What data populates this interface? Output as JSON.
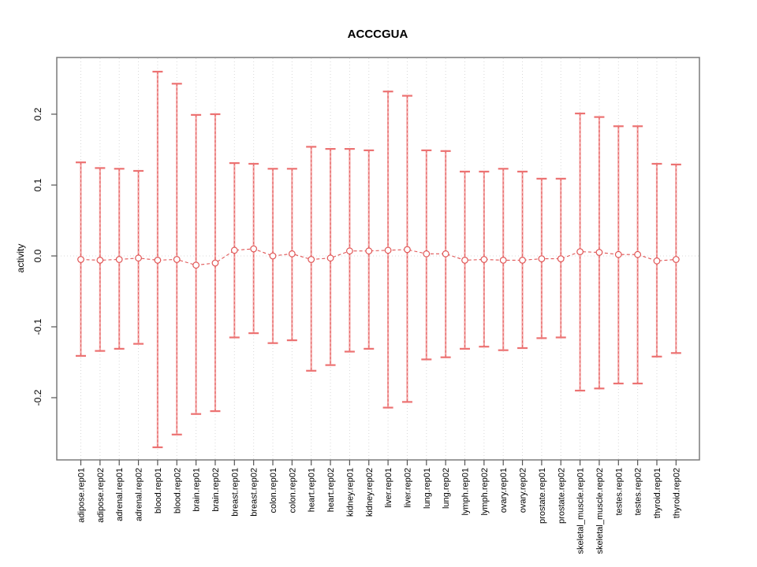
{
  "chart_data": {
    "type": "errorbar",
    "title": "ACCCGUA",
    "ylabel": "activity",
    "xlabel": "",
    "ylim": [
      -0.287,
      0.281
    ],
    "yticks": [
      -0.2,
      -0.1,
      0.0,
      0.1,
      0.2
    ],
    "ytick_labels": [
      "-0.2",
      "-0.1",
      "0.0",
      "0.1",
      "0.2"
    ],
    "zero_line": 0.0,
    "grid": "vertical-dotted-per-category",
    "legend": "none",
    "colors": {
      "bar_solid": "#F4A6A6",
      "bar_dash": "#E05555",
      "cap": "#EC7272",
      "point_stroke": "#E05555",
      "connector": "#E05555",
      "gridline": "#D8D8D8",
      "axis": "#555555",
      "box": "#7A7A7A",
      "text": "#000000"
    },
    "points": [
      {
        "label": "adipose.rep01",
        "mean": -0.005,
        "lo": -0.141,
        "hi": 0.132
      },
      {
        "label": "adipose.rep02",
        "mean": -0.006,
        "lo": -0.134,
        "hi": 0.124
      },
      {
        "label": "adrenal.rep01",
        "mean": -0.005,
        "lo": -0.131,
        "hi": 0.123
      },
      {
        "label": "adrenal.rep02",
        "mean": -0.003,
        "lo": -0.124,
        "hi": 0.12
      },
      {
        "label": "blood.rep01",
        "mean": -0.006,
        "lo": -0.27,
        "hi": 0.26
      },
      {
        "label": "blood.rep02",
        "mean": -0.005,
        "lo": -0.252,
        "hi": 0.243
      },
      {
        "label": "brain.rep01",
        "mean": -0.013,
        "lo": -0.223,
        "hi": 0.199
      },
      {
        "label": "brain.rep02",
        "mean": -0.01,
        "lo": -0.219,
        "hi": 0.2
      },
      {
        "label": "breast.rep01",
        "mean": 0.008,
        "lo": -0.115,
        "hi": 0.131
      },
      {
        "label": "breast.rep02",
        "mean": 0.01,
        "lo": -0.109,
        "hi": 0.13
      },
      {
        "label": "colon.rep01",
        "mean": 0.0,
        "lo": -0.123,
        "hi": 0.123
      },
      {
        "label": "colon.rep02",
        "mean": 0.003,
        "lo": -0.119,
        "hi": 0.123
      },
      {
        "label": "heart.rep01",
        "mean": -0.005,
        "lo": -0.162,
        "hi": 0.154
      },
      {
        "label": "heart.rep02",
        "mean": -0.003,
        "lo": -0.154,
        "hi": 0.151
      },
      {
        "label": "kidney.rep01",
        "mean": 0.007,
        "lo": -0.135,
        "hi": 0.151
      },
      {
        "label": "kidney.rep02",
        "mean": 0.007,
        "lo": -0.131,
        "hi": 0.149
      },
      {
        "label": "liver.rep01",
        "mean": 0.008,
        "lo": -0.214,
        "hi": 0.232
      },
      {
        "label": "liver.rep02",
        "mean": 0.009,
        "lo": -0.206,
        "hi": 0.226
      },
      {
        "label": "lung.rep01",
        "mean": 0.003,
        "lo": -0.146,
        "hi": 0.149
      },
      {
        "label": "lung.rep02",
        "mean": 0.003,
        "lo": -0.143,
        "hi": 0.148
      },
      {
        "label": "lymph.rep01",
        "mean": -0.006,
        "lo": -0.131,
        "hi": 0.119
      },
      {
        "label": "lymph.rep02",
        "mean": -0.005,
        "lo": -0.128,
        "hi": 0.119
      },
      {
        "label": "ovary.rep01",
        "mean": -0.006,
        "lo": -0.133,
        "hi": 0.123
      },
      {
        "label": "ovary.rep02",
        "mean": -0.006,
        "lo": -0.13,
        "hi": 0.119
      },
      {
        "label": "prostate.rep01",
        "mean": -0.004,
        "lo": -0.116,
        "hi": 0.109
      },
      {
        "label": "prostate.rep02",
        "mean": -0.004,
        "lo": -0.115,
        "hi": 0.109
      },
      {
        "label": "skeletal_muscle.rep01",
        "mean": 0.006,
        "lo": -0.19,
        "hi": 0.201
      },
      {
        "label": "skeletal_muscle.rep02",
        "mean": 0.005,
        "lo": -0.187,
        "hi": 0.196
      },
      {
        "label": "testes.rep01",
        "mean": 0.002,
        "lo": -0.18,
        "hi": 0.183
      },
      {
        "label": "testes.rep02",
        "mean": 0.002,
        "lo": -0.18,
        "hi": 0.183
      },
      {
        "label": "thyroid.rep01",
        "mean": -0.007,
        "lo": -0.142,
        "hi": 0.13
      },
      {
        "label": "thyroid.rep02",
        "mean": -0.005,
        "lo": -0.137,
        "hi": 0.129
      }
    ]
  }
}
